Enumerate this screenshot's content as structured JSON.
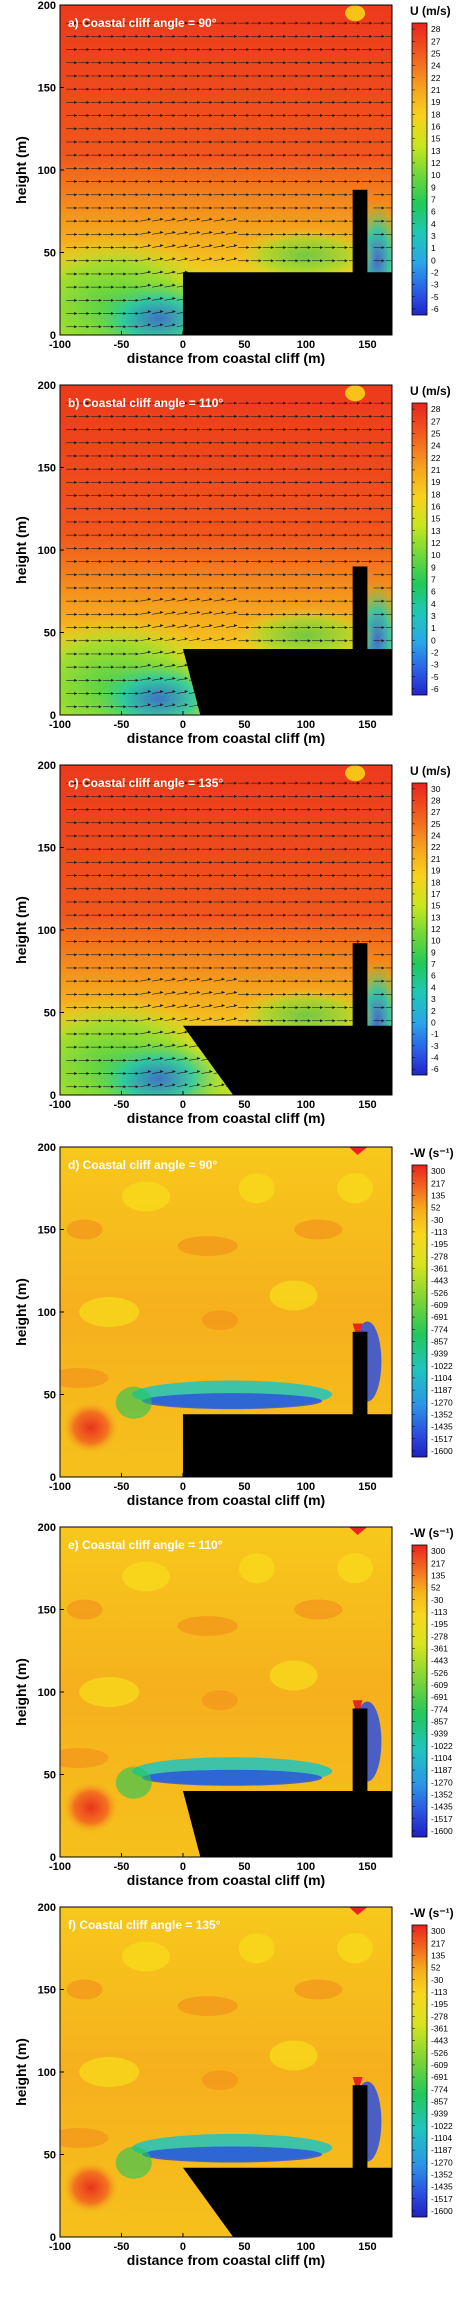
{
  "chart_data": [
    {
      "type": "heatmap",
      "panel_label": "a) Coastal cliff angle = 90°",
      "xlabel": "distance from coastal cliff (m)",
      "ylabel": "height (m)",
      "xlim": [
        -100,
        170
      ],
      "ylim": [
        0,
        200
      ],
      "x_ticks": [
        "-100",
        "-50",
        "0",
        "50",
        "100",
        "150"
      ],
      "y_ticks": [
        "0",
        "50",
        "100",
        "150",
        "200"
      ],
      "colorbar_title": "U (m/s)",
      "colorbar_labels": [
        "28",
        "27",
        "25",
        "24",
        "22",
        "21",
        "19",
        "18",
        "16",
        "15",
        "13",
        "12",
        "10",
        "9",
        "7",
        "6",
        "4",
        "3",
        "1",
        "0",
        "-2",
        "-3",
        "-5",
        "-6"
      ],
      "cliff_angle_deg": 90,
      "cliff_height_m": 38,
      "building": {
        "x": [
          138,
          150
        ],
        "height_m": 88
      },
      "vectors": true
    },
    {
      "type": "heatmap",
      "panel_label": "b) Coastal cliff angle = 110°",
      "xlabel": "distance from coastal cliff (m)",
      "ylabel": "height (m)",
      "xlim": [
        -100,
        170
      ],
      "ylim": [
        0,
        200
      ],
      "x_ticks": [
        "-100",
        "-50",
        "0",
        "50",
        "100",
        "150"
      ],
      "y_ticks": [
        "0",
        "50",
        "100",
        "150",
        "200"
      ],
      "colorbar_title": "U (m/s)",
      "colorbar_labels": [
        "28",
        "27",
        "25",
        "24",
        "22",
        "21",
        "19",
        "18",
        "16",
        "15",
        "13",
        "12",
        "10",
        "9",
        "7",
        "6",
        "4",
        "3",
        "1",
        "0",
        "-2",
        "-3",
        "-5",
        "-6"
      ],
      "cliff_angle_deg": 110,
      "cliff_height_m": 40,
      "building": {
        "x": [
          138,
          150
        ],
        "height_m": 90
      },
      "vectors": true
    },
    {
      "type": "heatmap",
      "panel_label": "c) Coastal cliff angle = 135°",
      "xlabel": "distance from coastal cliff (m)",
      "ylabel": "height (m)",
      "xlim": [
        -100,
        170
      ],
      "ylim": [
        0,
        200
      ],
      "x_ticks": [
        "-100",
        "-50",
        "0",
        "50",
        "100",
        "150"
      ],
      "y_ticks": [
        "0",
        "50",
        "100",
        "150",
        "200"
      ],
      "colorbar_title": "U (m/s)",
      "colorbar_labels": [
        "30",
        "28",
        "27",
        "25",
        "24",
        "22",
        "21",
        "19",
        "18",
        "17",
        "15",
        "13",
        "12",
        "10",
        "9",
        "7",
        "6",
        "4",
        "3",
        "2",
        "0",
        "-1",
        "-3",
        "-4",
        "-6"
      ],
      "cliff_angle_deg": 135,
      "cliff_height_m": 42,
      "building": {
        "x": [
          138,
          150
        ],
        "height_m": 92
      },
      "vectors": true
    },
    {
      "type": "heatmap",
      "panel_label": "d) Coastal cliff angle = 90°",
      "xlabel": "distance from coastal cliff (m)",
      "ylabel": "height (m)",
      "xlim": [
        -100,
        170
      ],
      "ylim": [
        0,
        200
      ],
      "x_ticks": [
        "-100",
        "-50",
        "0",
        "50",
        "100",
        "150"
      ],
      "y_ticks": [
        "0",
        "50",
        "100",
        "150",
        "200"
      ],
      "colorbar_title": "-W (s⁻¹)",
      "colorbar_labels": [
        "300",
        "217",
        "135",
        "52",
        "-30",
        "-113",
        "-195",
        "-278",
        "-361",
        "-443",
        "-526",
        "-609",
        "-691",
        "-774",
        "-857",
        "-939",
        "-1022",
        "-1104",
        "-1187",
        "-1270",
        "-1352",
        "-1435",
        "-1517",
        "-1600"
      ],
      "cliff_angle_deg": 90,
      "cliff_height_m": 38,
      "building": {
        "x": [
          138,
          150
        ],
        "height_m": 88
      },
      "vectors": false
    },
    {
      "type": "heatmap",
      "panel_label": "e) Coastal cliff angle = 110°",
      "xlabel": "distance from coastal cliff (m)",
      "ylabel": "height (m)",
      "xlim": [
        -100,
        170
      ],
      "ylim": [
        0,
        200
      ],
      "x_ticks": [
        "-100",
        "-50",
        "0",
        "50",
        "100",
        "150"
      ],
      "y_ticks": [
        "0",
        "50",
        "100",
        "150",
        "200"
      ],
      "colorbar_title": "-W (s⁻¹)",
      "colorbar_labels": [
        "300",
        "217",
        "135",
        "52",
        "-30",
        "-113",
        "-195",
        "-278",
        "-361",
        "-443",
        "-526",
        "-609",
        "-691",
        "-774",
        "-857",
        "-939",
        "-1022",
        "-1104",
        "-1187",
        "-1270",
        "-1352",
        "-1435",
        "-1517",
        "-1600"
      ],
      "cliff_angle_deg": 110,
      "cliff_height_m": 40,
      "building": {
        "x": [
          138,
          150
        ],
        "height_m": 90
      },
      "vectors": false
    },
    {
      "type": "heatmap",
      "panel_label": "f) Coastal cliff angle = 135°",
      "xlabel": "distance from coastal cliff (m)",
      "ylabel": "height (m)",
      "xlim": [
        -100,
        170
      ],
      "ylim": [
        0,
        200
      ],
      "x_ticks": [
        "-100",
        "-50",
        "0",
        "50",
        "100",
        "150"
      ],
      "y_ticks": [
        "0",
        "50",
        "100",
        "150",
        "200"
      ],
      "colorbar_title": "-W (s⁻¹)",
      "colorbar_labels": [
        "300",
        "217",
        "135",
        "52",
        "-30",
        "-113",
        "-195",
        "-278",
        "-361",
        "-443",
        "-526",
        "-609",
        "-691",
        "-774",
        "-857",
        "-939",
        "-1022",
        "-1104",
        "-1187",
        "-1270",
        "-1352",
        "-1435",
        "-1517",
        "-1600"
      ],
      "cliff_angle_deg": 135,
      "cliff_height_m": 42,
      "building": {
        "x": [
          138,
          150
        ],
        "height_m": 92
      },
      "vectors": false
    }
  ]
}
